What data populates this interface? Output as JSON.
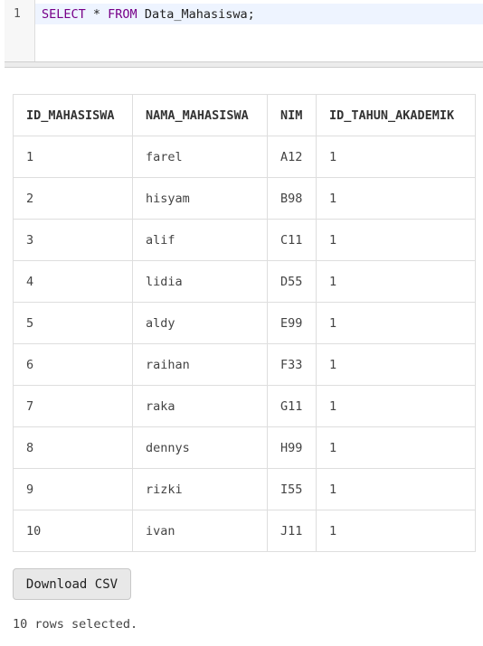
{
  "editor": {
    "line_number": "1",
    "sql": {
      "kw_select": "SELECT",
      "star": " * ",
      "kw_from": "FROM",
      "table": " Data_Mahasiswa;"
    }
  },
  "results": {
    "columns": [
      "ID_MAHASISWA",
      "NAMA_MAHASISWA",
      "NIM",
      "ID_TAHUN_AKADEMIK"
    ],
    "rows": [
      [
        "1",
        "farel",
        "A12",
        "1"
      ],
      [
        "2",
        "hisyam",
        "B98",
        "1"
      ],
      [
        "3",
        "alif",
        "C11",
        "1"
      ],
      [
        "4",
        "lidia",
        "D55",
        "1"
      ],
      [
        "5",
        "aldy",
        "E99",
        "1"
      ],
      [
        "6",
        "raihan",
        "F33",
        "1"
      ],
      [
        "7",
        "raka",
        "G11",
        "1"
      ],
      [
        "8",
        "dennys",
        "H99",
        "1"
      ],
      [
        "9",
        "rizki",
        "I55",
        "1"
      ],
      [
        "10",
        "ivan",
        "J11",
        "1"
      ]
    ]
  },
  "actions": {
    "download_label": "Download CSV"
  },
  "status": {
    "message": "10 rows selected."
  },
  "colors": {
    "keyword": "#770088",
    "button_bg": "#e8e8e8",
    "border": "#dedede"
  }
}
